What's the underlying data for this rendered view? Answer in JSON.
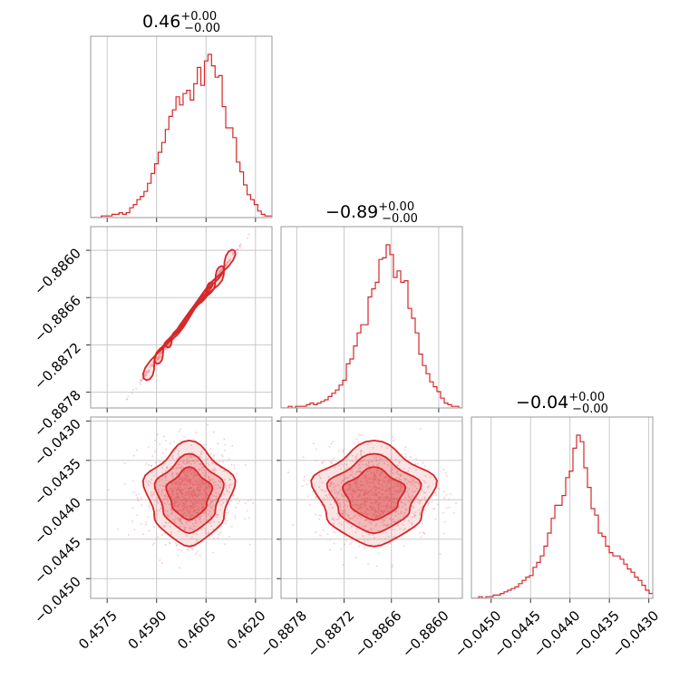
{
  "colors": {
    "accent": "#d62728",
    "grid": "#c8c8c8",
    "frame": "#999999",
    "points": "#f2a3ae"
  },
  "chart_data": {
    "type": "corner",
    "parameters": [
      {
        "title_value": "0.46",
        "title_plus": "+0.00",
        "title_minus": "−0.00",
        "range": [
          0.457,
          0.4625
        ],
        "ticks": [
          0.4575,
          0.459,
          0.4605,
          0.462
        ],
        "tick_labels": [
          "0.4575",
          "0.4590",
          "0.4605",
          "0.4620"
        ],
        "histogram": [
          0,
          0,
          0,
          1,
          1,
          1,
          2,
          2,
          3,
          2,
          3,
          6,
          8,
          11,
          13,
          16,
          21,
          27,
          33,
          40,
          46,
          54,
          62,
          66,
          74,
          69,
          76,
          78,
          72,
          82,
          92,
          81,
          96,
          100,
          93,
          86,
          87,
          68,
          55,
          55,
          49,
          34,
          28,
          20,
          14,
          11,
          8,
          4,
          2,
          1,
          1
        ]
      },
      {
        "title_value": "−0.89",
        "title_plus": "+0.00",
        "title_minus": "−0.00",
        "range": [
          -0.888,
          -0.8857
        ],
        "ticks": [
          -0.8878,
          -0.8872,
          -0.8866,
          -0.886
        ],
        "tick_labels": [
          "−0.8878",
          "−0.8872",
          "−0.8866",
          "−0.8860"
        ],
        "histogram": [
          0,
          0,
          1,
          0,
          1,
          1,
          1,
          2,
          3,
          2,
          3,
          4,
          5,
          7,
          9,
          11,
          14,
          17,
          27,
          30,
          38,
          46,
          51,
          51,
          68,
          73,
          77,
          91,
          92,
          100,
          94,
          80,
          84,
          77,
          78,
          61,
          55,
          46,
          33,
          26,
          21,
          16,
          13,
          10,
          6,
          3,
          2,
          1,
          1,
          0
        ]
      },
      {
        "title_value": "−0.04",
        "title_plus": "+0.00",
        "title_minus": "−0.00",
        "range": [
          -0.04525,
          -0.04295
        ],
        "ticks": [
          -0.045,
          -0.0445,
          -0.044,
          -0.0435,
          -0.043
        ],
        "tick_labels": [
          "−0.0450",
          "−0.0445",
          "−0.0440",
          "−0.0435",
          "−0.0430"
        ],
        "histogram": [
          0,
          0,
          1,
          0,
          1,
          1,
          2,
          2,
          3,
          4,
          5,
          6,
          7,
          9,
          11,
          13,
          14,
          19,
          22,
          26,
          32,
          40,
          49,
          57,
          57,
          63,
          74,
          78,
          92,
          100,
          96,
          80,
          68,
          55,
          51,
          40,
          38,
          32,
          28,
          26,
          26,
          24,
          21,
          18,
          16,
          13,
          11,
          8,
          5,
          3
        ]
      }
    ],
    "covariance": {
      "p0_p1": {
        "mean": [
          0.45999,
          -0.88682
        ],
        "sd": [
          0.00065,
          0.00037
        ],
        "corr": 0.999
      },
      "p0_p2": {
        "mean": [
          0.45999,
          -0.04392
        ],
        "sd": [
          0.00065,
          0.0003
        ],
        "corr": 0.0
      },
      "p1_p2": {
        "mean": [
          -0.88682,
          -0.04392
        ],
        "sd": [
          0.00037,
          0.0003
        ],
        "corr": 0.0
      }
    },
    "grid": true,
    "legend": "none"
  }
}
